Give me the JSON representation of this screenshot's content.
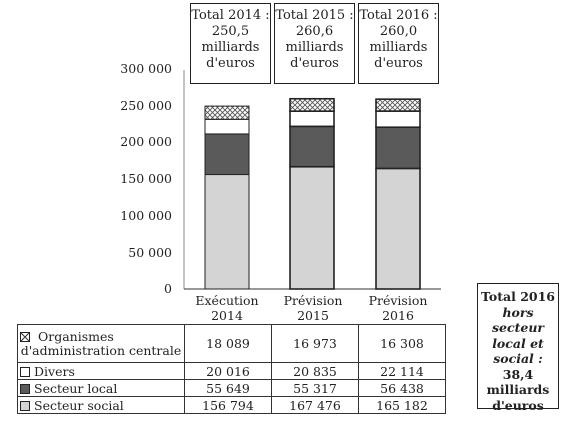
{
  "totals": [
    {
      "line1": "Total 2014 :",
      "line2": "250,5",
      "line3": "milliards",
      "line4": "d'euros"
    },
    {
      "line1": "Total 2015 :",
      "line2": "260,6",
      "line3": "milliards",
      "line4": "d'euros"
    },
    {
      "line1": "Total 2016 :",
      "line2": "260,0",
      "line3": "milliards",
      "line4": "d'euros"
    }
  ],
  "side_box": {
    "line1": "Total 2016",
    "line2": "hors secteur",
    "line3": "local et",
    "line4": "social :",
    "line5": "38,4",
    "line6": "milliards",
    "line7": "d'euros"
  },
  "chart_data": {
    "type": "bar",
    "stacked": true,
    "categories": [
      {
        "l1": "Exécution",
        "l2": "2014"
      },
      {
        "l1": "Prévision",
        "l2": "2015"
      },
      {
        "l1": "Prévision",
        "l2": "2016"
      }
    ],
    "yticks": [
      "0",
      "50 000",
      "100 000",
      "150 000",
      "200 000",
      "250 000",
      "300 000"
    ],
    "ylim": [
      0,
      300000
    ],
    "series": [
      {
        "name": "Secteur social",
        "values": [
          156794,
          167476,
          165182
        ],
        "labels": [
          "156 794",
          "167 476",
          "165 182"
        ],
        "color": "#d4d4d4"
      },
      {
        "name": "Secteur local",
        "values": [
          55649,
          55317,
          56438
        ],
        "labels": [
          "55 649",
          "55 317",
          "56 438"
        ],
        "color": "#5a5a5a"
      },
      {
        "name": "Divers",
        "values": [
          20016,
          20835,
          22114
        ],
        "labels": [
          "20 016",
          "20 835",
          "22 114"
        ],
        "color": "#ffffff"
      },
      {
        "name": "Organismes d'administration centrale",
        "name_l1": "Organismes",
        "name_l2": "d'administration centrale",
        "values": [
          18089,
          16973,
          16308
        ],
        "labels": [
          "18 089",
          "16 973",
          "16 308"
        ],
        "color": "#ffffff",
        "pattern": "crosshatch"
      }
    ]
  }
}
